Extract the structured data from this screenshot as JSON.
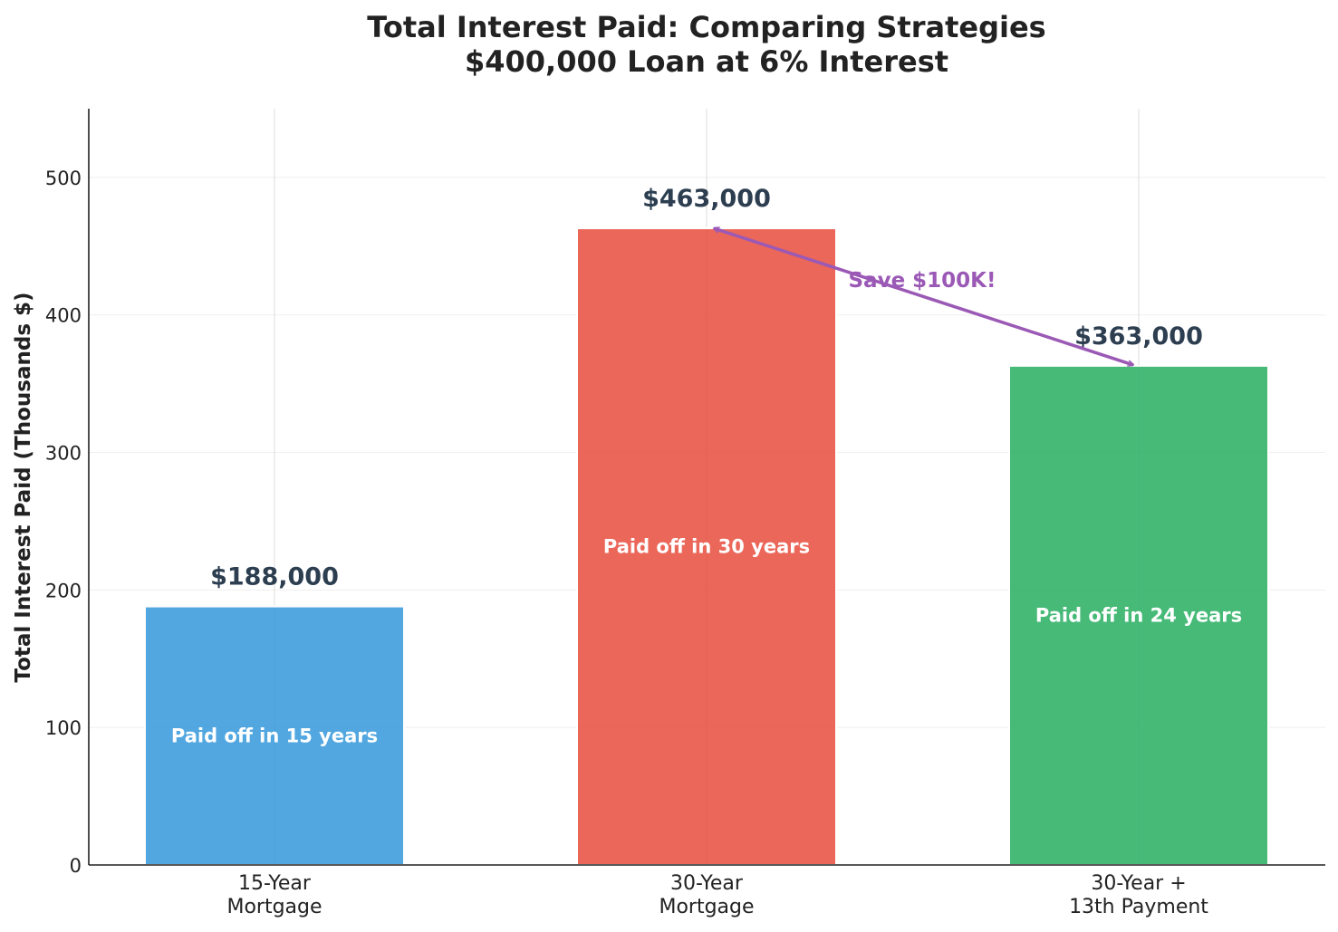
{
  "chart_data": {
    "type": "bar",
    "title": [
      "Total Interest Paid: Comparing Strategies",
      "$400,000 Loan at 6% Interest"
    ],
    "xlabel": "",
    "ylabel": "Total Interest Paid (Thousands $)",
    "ylim": [
      0,
      550
    ],
    "yticks": [
      0,
      100,
      200,
      300,
      400,
      500
    ],
    "grid": true,
    "categories": [
      [
        "15-Year",
        "Mortgage"
      ],
      [
        "30-Year",
        "Mortgage"
      ],
      [
        "30-Year +",
        "13th Payment"
      ]
    ],
    "values": [
      188,
      463,
      363
    ],
    "value_labels": [
      "$188,000",
      "$463,000",
      "$363,000"
    ],
    "inner_labels": [
      "Paid off in 15 years",
      "Paid off in 30 years",
      "Paid off in 24 years"
    ],
    "colors": [
      "#3498db",
      "#e74c3c",
      "#27ae60"
    ],
    "annotation": {
      "text": "Save $100K!",
      "color": "#9b59b6"
    }
  }
}
